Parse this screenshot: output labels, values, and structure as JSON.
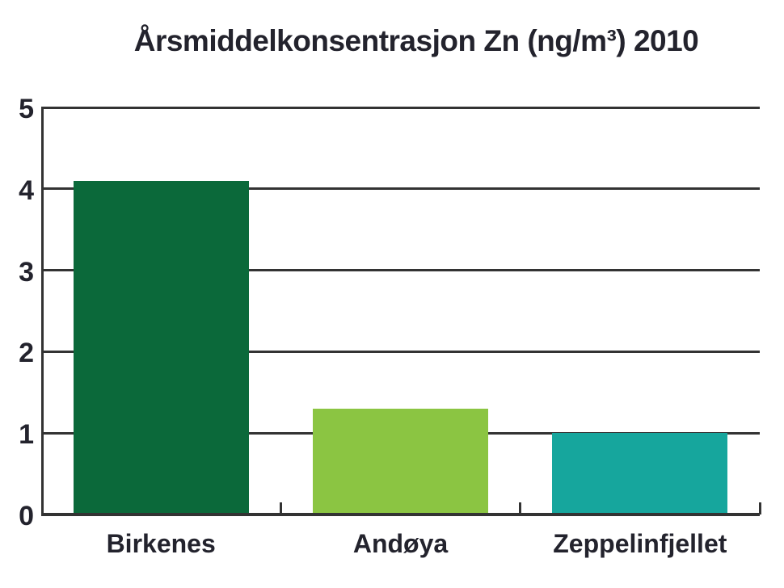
{
  "chart_data": {
    "type": "bar",
    "title": "Årsmiddelkonsentrasjon Zn (ng/m³) 2010",
    "categories": [
      "Birkenes",
      "Andøya",
      "Zeppelinfjellet"
    ],
    "values": [
      4.1,
      1.3,
      1.0
    ],
    "bar_colors": [
      "#0b693a",
      "#8bc542",
      "#16a69d"
    ],
    "xlabel": "",
    "ylabel": "",
    "ylim": [
      0,
      5
    ],
    "yticks": [
      0,
      1,
      2,
      3,
      4,
      5
    ],
    "grid": "horizontal-on",
    "legend": "none"
  },
  "colors": {
    "background": "#ffffff",
    "text": "#23232d",
    "axis": "#333333"
  }
}
